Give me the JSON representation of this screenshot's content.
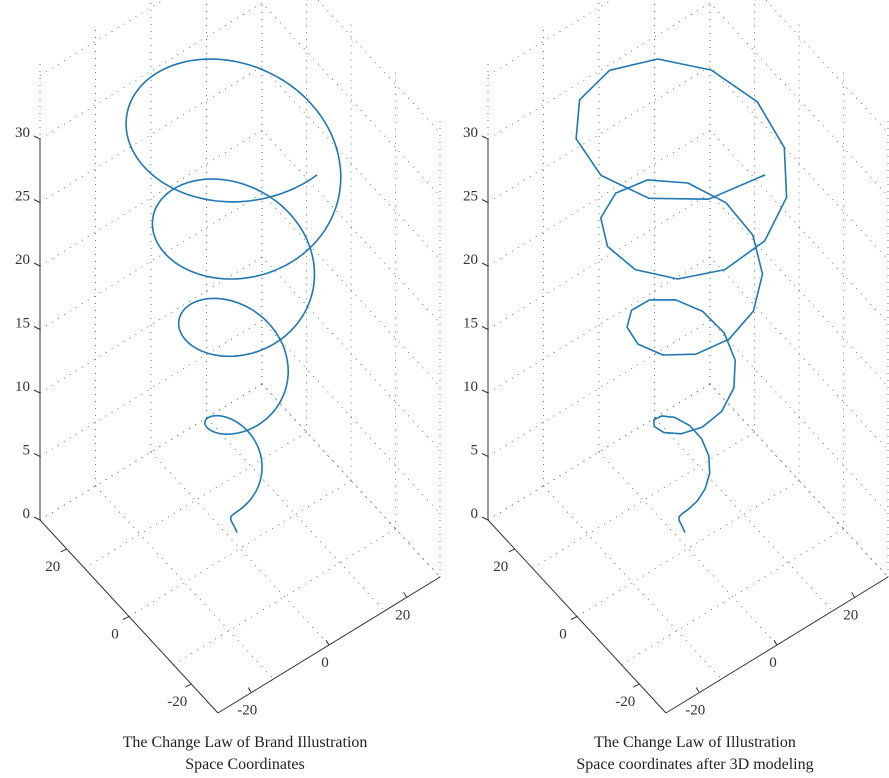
{
  "colors": {
    "series": "#1f77b4",
    "axis": "#333333",
    "grid": "#555555"
  },
  "chart_data": [
    {
      "type": "line3d",
      "caption": [
        "The Change Law of Brand Illustration",
        "Space Coordinates"
      ],
      "zlim": [
        0,
        30
      ],
      "z_ticks": [
        "0",
        "5",
        "10",
        "15",
        "20",
        "25",
        "30"
      ],
      "x_ticks": [
        "-20",
        "0",
        "20"
      ],
      "y_ticks": [
        "-20",
        "0",
        "20"
      ],
      "grid": true,
      "series": [
        {
          "shape": "conical spiral",
          "z_range": [
            1,
            36
          ],
          "radius_range": [
            1,
            26
          ],
          "turns": 4.5,
          "segments": "smooth"
        }
      ]
    },
    {
      "type": "line3d",
      "caption": [
        "The Change Law of Illustration",
        "Space coordinates after 3D modeling"
      ],
      "zlim": [
        0,
        30
      ],
      "z_ticks": [
        "0",
        "5",
        "10",
        "15",
        "20",
        "25",
        "30"
      ],
      "x_ticks": [
        "-20",
        "0",
        "20"
      ],
      "y_ticks": [
        "-20",
        "0",
        "20"
      ],
      "grid": true,
      "series": [
        {
          "shape": "conical spiral",
          "z_range": [
            1,
            36
          ],
          "radius_range": [
            1,
            26
          ],
          "turns": 4.5,
          "segments": "polyline"
        }
      ]
    }
  ]
}
